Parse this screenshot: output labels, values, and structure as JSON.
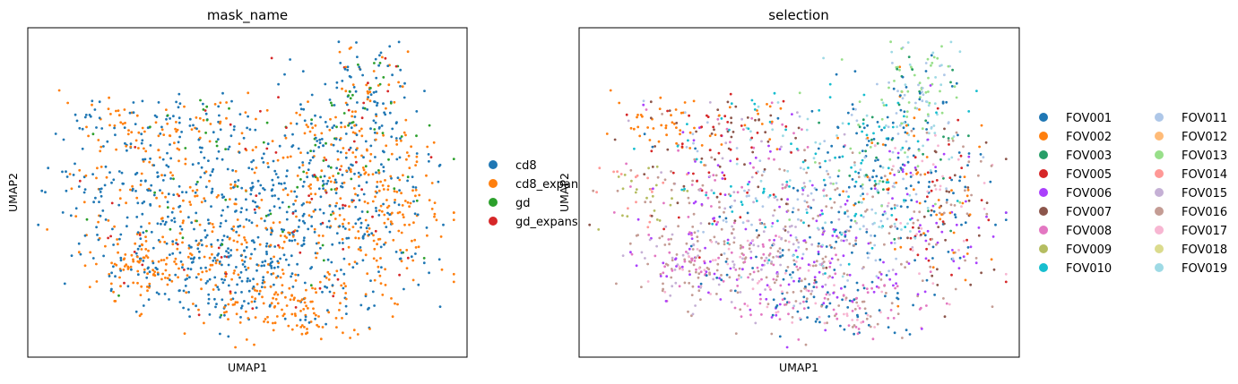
{
  "chart_data": [
    {
      "type": "scatter",
      "title": "mask_name",
      "xlabel": "UMAP1",
      "ylabel": "UMAP2",
      "ticks": "none",
      "grid": false,
      "legend": {
        "placement": "right",
        "entries": [
          {
            "name": "cd8",
            "color": "#1f77b4"
          },
          {
            "name": "cd8_expan",
            "color": "#ff7f0e"
          },
          {
            "name": "gd",
            "color": "#2ca02c"
          },
          {
            "name": "gd_expans",
            "color": "#d62728"
          }
        ]
      },
      "data_description": "approx. 1800 UMAP cell embeddings; category shares estimated from pixel density",
      "category_share": {
        "cd8": 0.55,
        "cd8_expan": 0.38,
        "gd": 0.05,
        "gd_expans": 0.02
      }
    },
    {
      "type": "scatter",
      "title": "selection",
      "xlabel": "UMAP1",
      "ylabel": "UMAP2",
      "ticks": "none",
      "grid": false,
      "legend": {
        "placement": "right",
        "columns": 2,
        "entries": [
          {
            "name": "FOV001",
            "color": "#1f77b4"
          },
          {
            "name": "FOV002",
            "color": "#ff7f0e"
          },
          {
            "name": "FOV003",
            "color": "#279e68"
          },
          {
            "name": "FOV005",
            "color": "#d62728"
          },
          {
            "name": "FOV006",
            "color": "#aa40fc"
          },
          {
            "name": "FOV007",
            "color": "#8c564b"
          },
          {
            "name": "FOV008",
            "color": "#e377c2"
          },
          {
            "name": "FOV009",
            "color": "#b5bd61"
          },
          {
            "name": "FOV010",
            "color": "#17becf"
          },
          {
            "name": "FOV011",
            "color": "#aec7e8"
          },
          {
            "name": "FOV012",
            "color": "#ffbb78"
          },
          {
            "name": "FOV013",
            "color": "#98df8a"
          },
          {
            "name": "FOV014",
            "color": "#ff9896"
          },
          {
            "name": "FOV015",
            "color": "#c5b0d5"
          },
          {
            "name": "FOV016",
            "color": "#c49c94"
          },
          {
            "name": "FOV017",
            "color": "#f7b6d2"
          },
          {
            "name": "FOV018",
            "color": "#dbdb8d"
          },
          {
            "name": "FOV019",
            "color": "#9edae5"
          }
        ]
      }
    }
  ]
}
